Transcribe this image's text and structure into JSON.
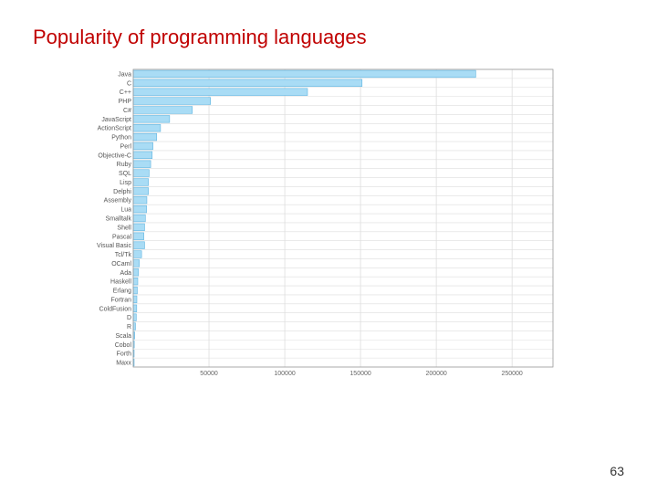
{
  "slide": {
    "title": "Popularity of programming languages",
    "page_number": "63"
  },
  "chart_data": {
    "type": "bar",
    "orientation": "horizontal",
    "title": "",
    "xlabel": "",
    "ylabel": "",
    "categories": [
      "Java",
      "C",
      "C++",
      "PHP",
      "C#",
      "JavaScript",
      "ActionScript",
      "Python",
      "Perl",
      "Objective-C",
      "Ruby",
      "SQL",
      "Lisp",
      "Delphi",
      "Assembly",
      "Lua",
      "Smalltalk",
      "Shell",
      "Pascal",
      "Visual Basic",
      "Tcl/Tk",
      "OCaml",
      "Ada",
      "Haskell",
      "Erlang",
      "Fortran",
      "ColdFusion",
      "D",
      "R",
      "Scala",
      "Cobol",
      "Forth",
      "Maxx"
    ],
    "values": [
      226000,
      151000,
      115000,
      51000,
      39000,
      24000,
      18000,
      15500,
      13000,
      12500,
      11500,
      10500,
      10000,
      10000,
      9000,
      8800,
      8000,
      7500,
      7000,
      7500,
      5500,
      4000,
      3500,
      3000,
      2700,
      2400,
      2300,
      2000,
      1500,
      1000,
      700,
      400,
      200
    ],
    "xticks": [
      50000,
      100000,
      150000,
      200000,
      250000
    ],
    "xtick_labels": [
      "50000",
      "100000",
      "150000",
      "200000",
      "250000"
    ],
    "xlim": [
      0,
      277000
    ],
    "grid": true,
    "colors": {
      "bar_fill": "#a9dcf5",
      "bar_stroke": "#5fb4e0",
      "grid": "#dddddd",
      "frame": "#999999"
    }
  }
}
